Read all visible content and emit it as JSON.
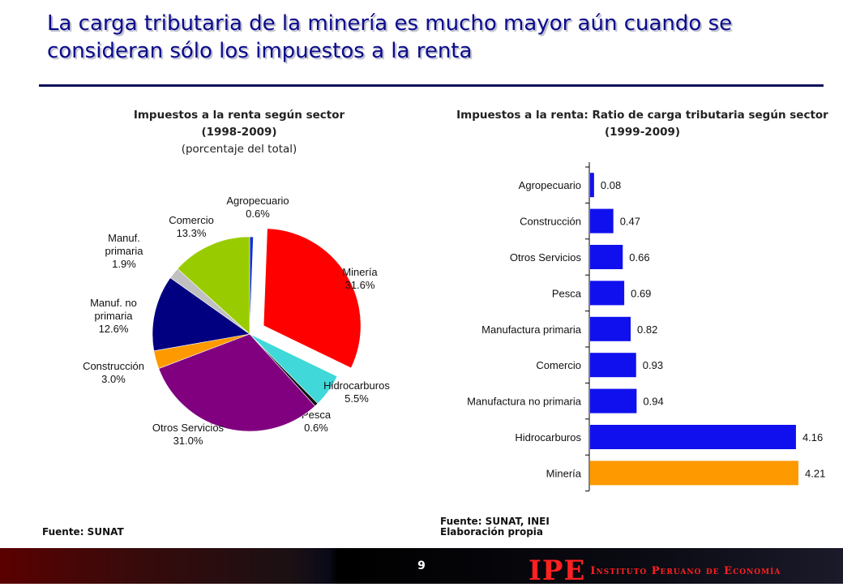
{
  "slide": {
    "title": "La carga tributaria de la minería es mucho mayor aún cuando se consideran sólo los impuestos a la renta",
    "page_number": "9",
    "logo": {
      "abbr": "IPE",
      "name": "Instituto Peruano de Economía"
    }
  },
  "colors": {
    "title": "#0b0b8c",
    "bar_default": "#1010ee",
    "bar_highlight": "#ff9900"
  },
  "chart_data": [
    {
      "type": "pie",
      "title_line1": "Impuestos a la renta según sector",
      "title_line2": "(1998-2009)",
      "subtitle": "(porcentaje del total)",
      "source": "Fuente: SUNAT",
      "slices": [
        {
          "name": "Agropecuario",
          "value": 0.6,
          "label": "0.6%",
          "color": "#1030d0"
        },
        {
          "name": "Minería",
          "value": 31.6,
          "label": "31.6%",
          "color": "#ff0000",
          "exploded": true
        },
        {
          "name": "Hidrocarburos",
          "value": 5.5,
          "label": "5.5%",
          "color": "#40d8d8"
        },
        {
          "name": "Pesca",
          "value": 0.6,
          "label": "0.6%",
          "color": "#101010"
        },
        {
          "name": "Otros Servicios",
          "value": 31.0,
          "label": "31.0%",
          "color": "#800080"
        },
        {
          "name": "Construcción",
          "value": 3.0,
          "label": "3.0%",
          "color": "#ff9900"
        },
        {
          "name": "Manuf. no primaria",
          "value": 12.6,
          "label": "12.6%",
          "color": "#000080"
        },
        {
          "name": "Manuf. primaria",
          "value": 1.9,
          "label": "1.9%",
          "color": "#c0c0c0"
        },
        {
          "name": "Comercio",
          "value": 13.3,
          "label": "13.3%",
          "color": "#99cc00"
        }
      ]
    },
    {
      "type": "bar",
      "orientation": "horizontal",
      "title": "Impuestos a la renta: Ratio de carga tributaria según sector (1999-2009)",
      "source_line1": "Fuente: SUNAT, INEI",
      "source_line2": "Elaboración propia",
      "xlim": [
        0,
        4.21
      ],
      "grid": false,
      "categories": [
        "Agropecuario",
        "Construcción",
        "Otros Servicios",
        "Pesca",
        "Manufactura primaria",
        "Comercio",
        "Manufactura no primaria",
        "Hidrocarburos",
        "Minería"
      ],
      "values": [
        0.08,
        0.47,
        0.66,
        0.69,
        0.82,
        0.93,
        0.94,
        4.16,
        4.21
      ],
      "value_labels": [
        "0.08",
        "0.47",
        "0.66",
        "0.69",
        "0.82",
        "0.93",
        "0.94",
        "4.16",
        "4.21"
      ],
      "highlight": "Minería"
    }
  ]
}
